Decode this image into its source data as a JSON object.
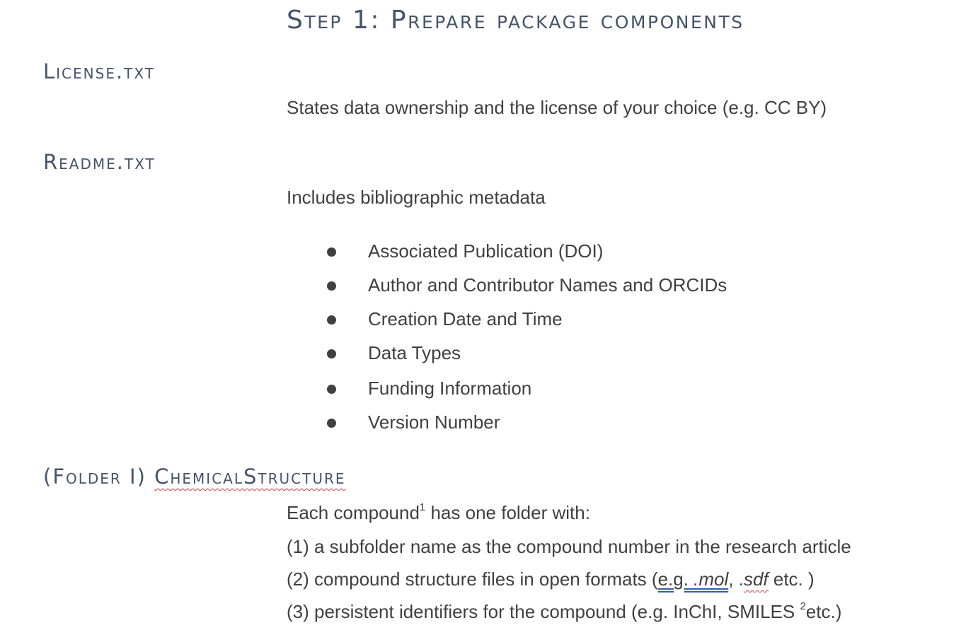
{
  "title": "Step 1: Prepare package components",
  "sections": {
    "license": {
      "heading": "License.txt",
      "description": "States data ownership and the license of your choice (e.g. CC BY)"
    },
    "readme": {
      "heading": "Readme.txt",
      "description": "Includes bibliographic metadata",
      "items": [
        "Associated Publication (DOI)",
        "Author and Contributor Names and ORCIDs",
        "Creation Date and Time",
        "Data Types",
        "Funding Information",
        "Version Number"
      ]
    },
    "folder": {
      "heading_prefix": "(Folder I) ",
      "heading_name": "ChemicalStructure",
      "intro_before": "Each compound",
      "intro_sup": "1",
      "intro_after": " has one folder with:",
      "line1": "(1) a subfolder name as the compound number in the research article",
      "line2_before": "(2) compound structure files in open formats (",
      "line2_eg": "e.g. .mol",
      "line2_comma": ", .",
      "line2_sdf": "sdf",
      "line2_after": " etc. )",
      "line3_before": "(3) persistent identifiers for the compound (e.g. InChI, SMILES ",
      "line3_sup": "2",
      "line3_after": "etc.)"
    }
  }
}
